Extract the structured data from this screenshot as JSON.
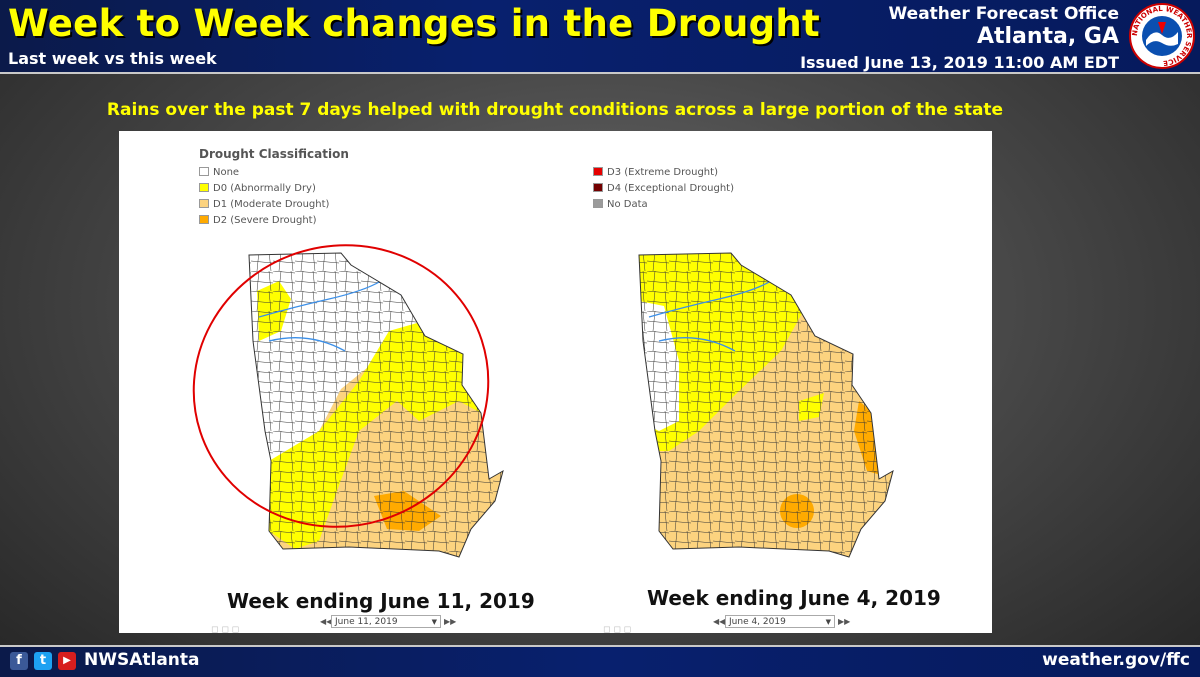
{
  "header": {
    "title": "Week to Week changes in the Drought",
    "subtitle": "Last week vs this week",
    "office_line1": "Weather Forecast Office",
    "office_line2": "Atlanta, GA",
    "issued": "Issued June 13, 2019 11:00 AM EDT",
    "logo_text": "NATIONAL WEATHER SERVICE"
  },
  "headline": "Rains over the past 7 days helped with drought conditions across a large portion of the state",
  "legend": {
    "title": "Drought Classification",
    "items": [
      {
        "label": "None",
        "color": "#ffffff"
      },
      {
        "label": "D0 (Abnormally Dry)",
        "color": "#ffff00"
      },
      {
        "label": "D1 (Moderate Drought)",
        "color": "#fcd37f"
      },
      {
        "label": "D2 (Severe Drought)",
        "color": "#ffaa00"
      },
      {
        "label": "D3 (Extreme Drought)",
        "color": "#e60000"
      },
      {
        "label": "D4 (Exceptional Drought)",
        "color": "#730000"
      },
      {
        "label": "No Data",
        "color": "#9b9b9b"
      }
    ]
  },
  "maps": [
    {
      "caption": "Week ending June 11, 2019",
      "date_select": "June 11, 2019",
      "highlight": "red-circle-north-georgia"
    },
    {
      "caption": "Week ending June 4, 2019",
      "date_select": "June 4, 2019"
    }
  ],
  "footer": {
    "handle": "NWSAtlanta",
    "website": "weather.gov/ffc",
    "icons": [
      "facebook-icon",
      "twitter-icon",
      "youtube-icon"
    ]
  }
}
